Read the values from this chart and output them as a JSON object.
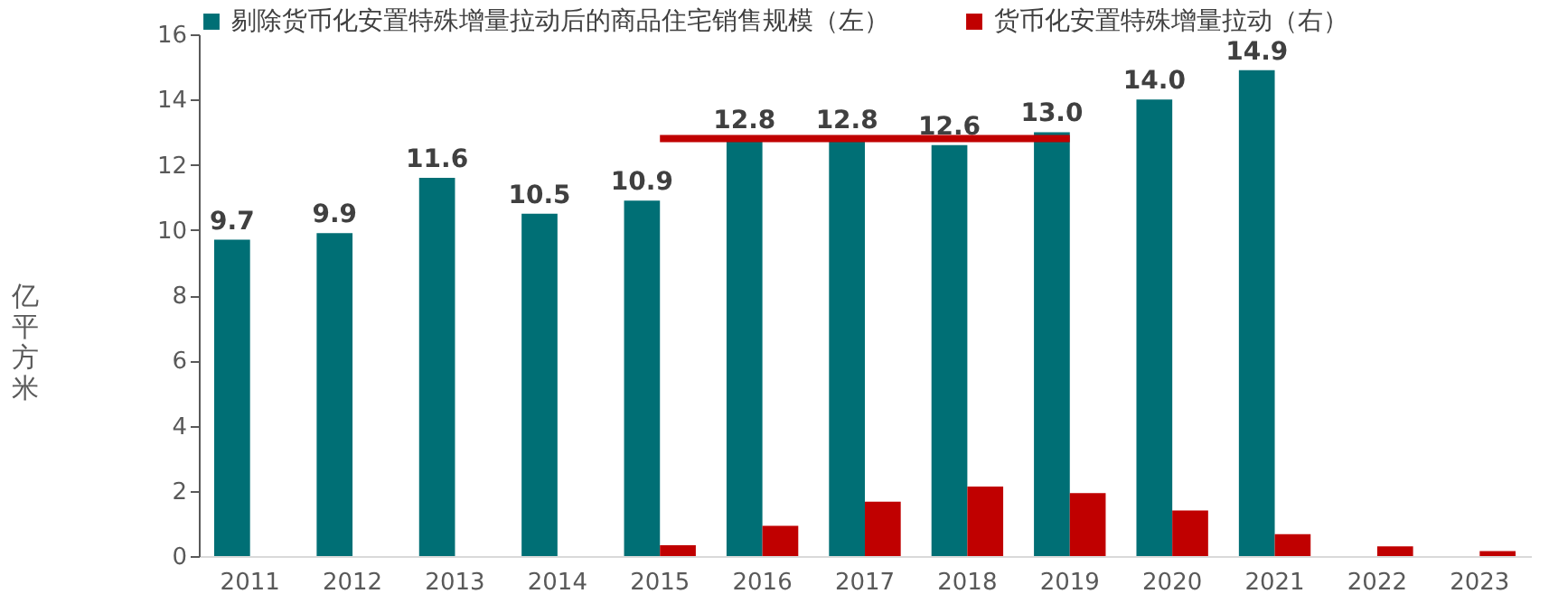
{
  "chart_data": {
    "type": "bar",
    "ylabel": "亿平方米",
    "categories": [
      "2011",
      "2012",
      "2013",
      "2014",
      "2015",
      "2016",
      "2017",
      "2018",
      "2019",
      "2020",
      "2021",
      "2022",
      "2023"
    ],
    "series": [
      {
        "name": "剔除货币化安置特殊增量拉动后的商品住宅销售规模（左）",
        "color": "#006f75",
        "values": [
          9.7,
          9.9,
          11.6,
          10.5,
          10.9,
          12.8,
          12.8,
          12.6,
          13.0,
          14.0,
          14.9,
          null,
          null
        ],
        "value_labels": [
          "9.7",
          "9.9",
          "11.6",
          "10.5",
          "10.9",
          "12.8",
          "12.8",
          "12.6",
          "13.0",
          "14.0",
          "14.9",
          null,
          null
        ]
      },
      {
        "name": "货币化安置特殊增量拉动（右）",
        "color": "#c00000",
        "values": [
          null,
          null,
          null,
          null,
          0.33,
          0.93,
          1.67,
          2.13,
          1.93,
          1.4,
          0.67,
          0.3,
          0.15
        ]
      },
      {
        "type": "line",
        "color": "#c00000",
        "values": [
          null,
          null,
          null,
          null,
          12.8,
          12.8,
          12.8,
          12.8,
          12.8,
          null,
          null,
          null,
          null
        ]
      }
    ],
    "ylim": [
      0,
      16
    ],
    "yticks": [
      0,
      2,
      4,
      6,
      8,
      10,
      12,
      14,
      16
    ],
    "grid": false,
    "legend": "top left"
  }
}
